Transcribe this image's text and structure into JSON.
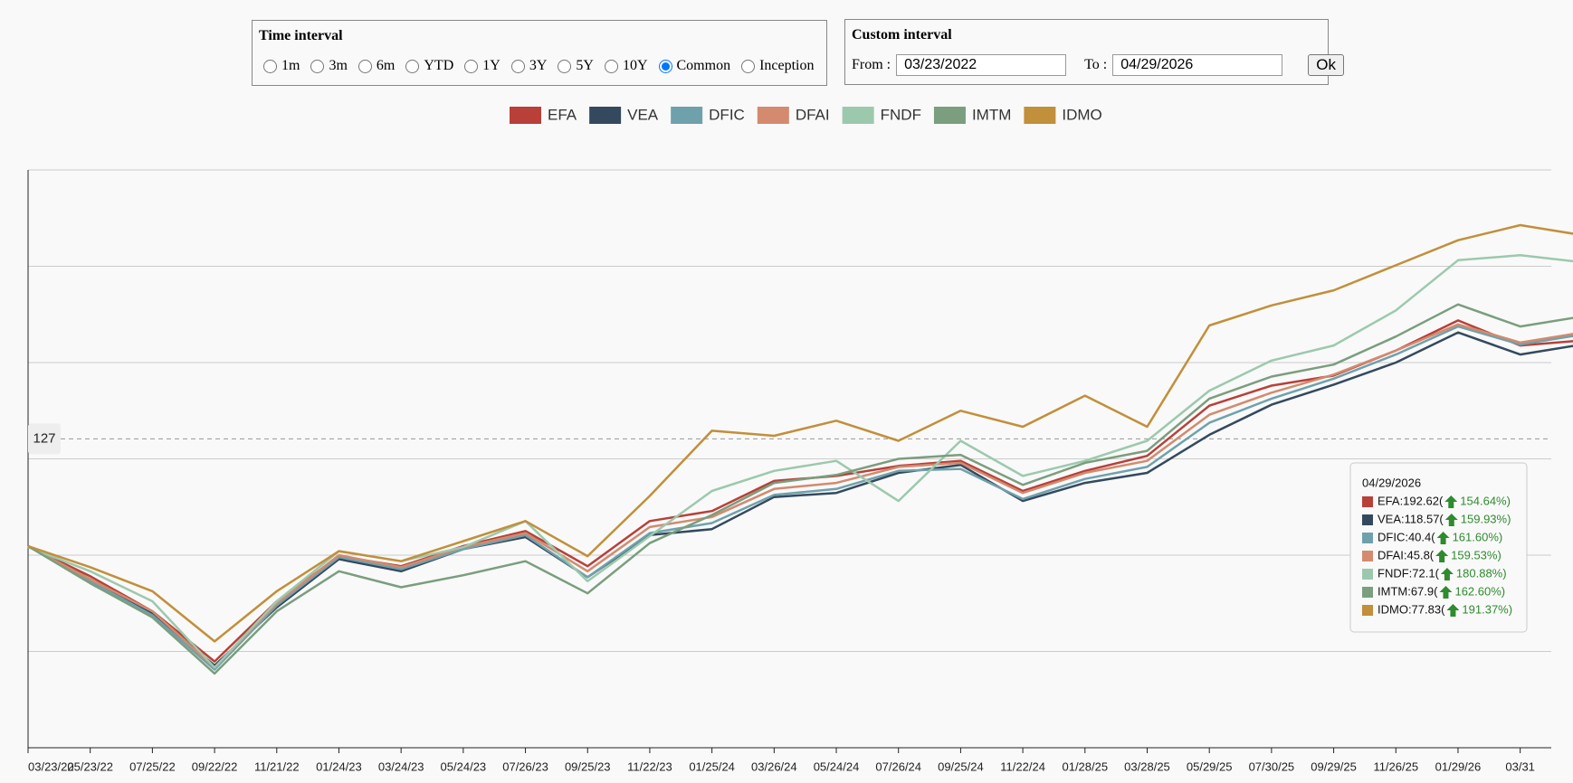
{
  "controls": {
    "time_interval": {
      "title": "Time interval",
      "options": [
        "1m",
        "3m",
        "6m",
        "YTD",
        "1Y",
        "3Y",
        "5Y",
        "10Y",
        "Common",
        "Inception"
      ],
      "selected": "Common"
    },
    "custom_interval": {
      "title": "Custom interval",
      "from_label": "From :",
      "from": "03/23/2022",
      "to_label": "To :",
      "to": "04/29/2026",
      "button": "Ok"
    }
  },
  "chart_data": {
    "type": "line",
    "categories": [
      "03/23/22",
      "05/23/22",
      "07/25/22",
      "09/22/22",
      "11/21/22",
      "01/24/23",
      "03/24/23",
      "05/24/23",
      "07/26/23",
      "09/25/23",
      "11/22/23",
      "01/25/24",
      "03/26/24",
      "05/24/24",
      "07/26/24",
      "09/25/24",
      "11/22/24",
      "01/28/25",
      "03/28/25",
      "05/29/25",
      "07/30/25",
      "09/29/25",
      "11/26/25",
      "01/29/26",
      "03/31",
      null
    ],
    "series": [
      {
        "name": "EFA",
        "color": "#b84038",
        "values": [
          100.25,
          92.75,
          84,
          71.5,
          86.5,
          97.75,
          95.25,
          100.25,
          104,
          95.25,
          106.5,
          109,
          116.5,
          117.75,
          120.25,
          121.5,
          114,
          119,
          122.75,
          135.25,
          140.25,
          142.75,
          149,
          156.5,
          150.25,
          151.5
        ]
      },
      {
        "name": "VEA",
        "color": "#34495e",
        "values": [
          100.25,
          92,
          83.5,
          70.5,
          85,
          97,
          94,
          99.5,
          102.5,
          92.5,
          103,
          104.5,
          112.5,
          113.5,
          118.5,
          120.5,
          111.5,
          116,
          118.5,
          128,
          135.5,
          140.5,
          146,
          153.5,
          148,
          150.5
        ]
      },
      {
        "name": "DFIC",
        "color": "#6fa1ad",
        "values": [
          100.25,
          91.5,
          83,
          69.5,
          85.5,
          97.5,
          94.5,
          99.5,
          103,
          92.5,
          103.5,
          106,
          113,
          114.5,
          119,
          119.5,
          112,
          117,
          120,
          131,
          137,
          142,
          148,
          155,
          150.5,
          153
        ]
      },
      {
        "name": "DFAI",
        "color": "#d38a6e",
        "values": [
          100.25,
          92,
          84,
          70,
          86,
          98,
          95,
          100,
          103.5,
          94,
          105,
          107.5,
          114.5,
          116,
          120,
          121,
          113.5,
          118.5,
          121.5,
          133,
          138.5,
          143,
          149,
          155.5,
          151,
          153.5
        ]
      },
      {
        "name": "FNDF",
        "color": "#9cc9ad",
        "values": [
          100,
          94,
          86.5,
          70,
          86.5,
          99,
          96.5,
          100,
          106.5,
          91.5,
          102.75,
          114,
          119,
          121.5,
          111.5,
          126.5,
          117.75,
          121.5,
          126.5,
          139,
          146.5,
          150.25,
          159,
          171.5,
          172.75,
          171
        ]
      },
      {
        "name": "IMTM",
        "color": "#7a9e7e",
        "values": [
          100.25,
          91,
          82.5,
          68.5,
          84,
          94,
          90,
          93,
          96.5,
          88.5,
          101,
          108,
          116,
          118,
          122,
          123,
          115.5,
          121,
          124,
          137,
          142.5,
          145.5,
          152.5,
          160.5,
          155,
          157.5
        ]
      },
      {
        "name": "IDMO",
        "color": "#c28f3a",
        "values": [
          100.25,
          95,
          89,
          76.5,
          89,
          99,
          96.5,
          101.5,
          106.5,
          97.75,
          112.75,
          129,
          127.75,
          131.5,
          126.5,
          134,
          130,
          137.75,
          130,
          155.25,
          160.25,
          164,
          170.25,
          176.5,
          180.25,
          177.75
        ]
      }
    ],
    "ylim": [
      50,
      194
    ],
    "ygrid": [
      74,
      98,
      122,
      146,
      170
    ],
    "crosshair": 127,
    "tooltip": {
      "date": "04/29/2026",
      "rows": [
        {
          "text": "EFA:192.62(",
          "change": "154.64%)"
        },
        {
          "text": "VEA:118.57(",
          "change": "159.93%)"
        },
        {
          "text": "DFIC:40.4(",
          "change": "161.60%)"
        },
        {
          "text": "DFAI:45.8(",
          "change": "159.53%)"
        },
        {
          "text": "FNDF:72.1(",
          "change": "180.88%)"
        },
        {
          "text": "IMTM:67.9(",
          "change": "162.60%)"
        },
        {
          "text": "IDMO:77.83(",
          "change": "191.37%)"
        }
      ]
    }
  }
}
